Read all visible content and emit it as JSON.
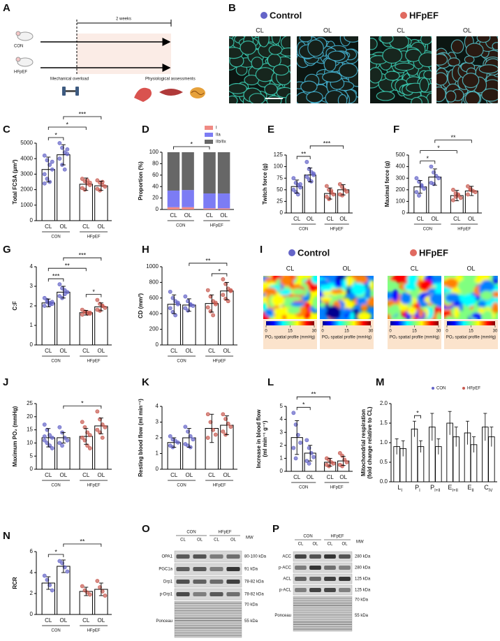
{
  "panel_a": {
    "label": "A",
    "groups": [
      "CON",
      "HFpEF"
    ],
    "duration": "2 weeks",
    "step1": "Mechanical overload",
    "step2": "Physiological assessments"
  },
  "panel_b": {
    "label": "B",
    "groups": [
      "Control",
      "HFpEF"
    ],
    "conditions": [
      "CL",
      "OL"
    ],
    "group_colors": [
      "#6464c8",
      "#e06a60"
    ]
  },
  "panel_i": {
    "label": "I",
    "groups": [
      "Control",
      "HFpEF"
    ],
    "conditions": [
      "CL",
      "OL"
    ],
    "group_colors": [
      "#6464c8",
      "#e06a60"
    ],
    "colorbar_ticks": [
      0,
      15,
      30
    ],
    "colorbar_label": "PO₂ spatial profile (mmHg)"
  },
  "panel_o": {
    "label": "O",
    "groups": [
      "CON",
      "HFpEF"
    ],
    "lanes": [
      "CL",
      "OL",
      "CL",
      "OL"
    ],
    "mw_header": "MW",
    "rows": [
      {
        "name": "OPA1",
        "mw": "80-100 kDa"
      },
      {
        "name": "PGC1a",
        "mw": "91 kDa"
      },
      {
        "name": "Drp1",
        "mw": "78-82 kDa"
      },
      {
        "name": "p-Drp1",
        "mw": "78-82 kDa"
      }
    ],
    "ponceau": "Ponceau",
    "ponceau_mw": [
      "70 kDa",
      "55 kDa"
    ]
  },
  "panel_p": {
    "label": "P",
    "groups": [
      "CON",
      "HFpEF"
    ],
    "lanes": [
      "CL",
      "OL",
      "CL",
      "OL"
    ],
    "mw_header": "MW",
    "rows": [
      {
        "name": "ACC",
        "mw": "280 kDa"
      },
      {
        "name": "p-ACC",
        "mw": "280 kDa"
      },
      {
        "name": "ACL",
        "mw": "125 kDa"
      },
      {
        "name": "p-ACL",
        "mw": "125 kDa"
      }
    ],
    "ponceau": "Ponceau",
    "ponceau_mw": [
      "70 kDa",
      "55 kDa"
    ]
  },
  "chart_data": [
    {
      "type": "bar",
      "label": "C",
      "ylabel": "Total FCSA (µm²)",
      "categories": [
        "CL",
        "OL",
        "CL",
        "OL"
      ],
      "groups": [
        "CON",
        "HFpEF"
      ],
      "group_colors": [
        "#6464c8",
        "#c85a50"
      ],
      "values": [
        3300,
        4250,
        2350,
        2250
      ],
      "errors": [
        800,
        650,
        400,
        300
      ],
      "points": [
        [
          4200,
          3900,
          3600,
          3300,
          3000,
          2700,
          2500,
          3800,
          2400
        ],
        [
          5000,
          4700,
          4400,
          4300,
          4000,
          3600,
          3300,
          4600
        ],
        [
          2700,
          2550,
          2400,
          2300,
          2100,
          2000,
          2600,
          2450
        ],
        [
          2600,
          2450,
          2300,
          2200,
          2050,
          1950,
          2500
        ]
      ],
      "ylim": [
        0,
        5000
      ],
      "yticks": [
        0,
        1000,
        2000,
        3000,
        4000,
        5000
      ],
      "significance": [
        {
          "from": 0,
          "to": 1,
          "label": "*"
        },
        {
          "from": 0,
          "to": 2,
          "label": "*"
        },
        {
          "from": 1,
          "to": 3,
          "label": "***"
        }
      ]
    },
    {
      "type": "stacked_bar",
      "label": "D",
      "ylabel": "Proportion (%)",
      "categories": [
        "CL",
        "OL",
        "CL",
        "OL"
      ],
      "groups": [
        "CON",
        "HFpEF"
      ],
      "series": [
        {
          "name": "I",
          "color": "#f08a84",
          "values": [
            4,
            4,
            2,
            2
          ]
        },
        {
          "name": "IIa",
          "color": "#7c7cf4",
          "values": [
            29,
            30,
            26,
            26
          ]
        },
        {
          "name": "IIb/IIx",
          "color": "#676767",
          "values": [
            67,
            66,
            72,
            72
          ]
        }
      ],
      "ylim": [
        0,
        100
      ],
      "yticks": [
        0,
        20,
        40,
        60,
        80,
        100
      ],
      "significance": [
        {
          "from": 0,
          "to": 2,
          "label": "*"
        }
      ]
    },
    {
      "type": "bar",
      "label": "E",
      "ylabel": "Twitch force (g)",
      "categories": [
        "CL",
        "OL",
        "CL",
        "OL"
      ],
      "groups": [
        "CON",
        "HFpEF"
      ],
      "group_colors": [
        "#6464c8",
        "#c85a50"
      ],
      "values": [
        57,
        82,
        42,
        50
      ],
      "errors": [
        14,
        15,
        12,
        11
      ],
      "points": [
        [
          75,
          65,
          60,
          55,
          50,
          45,
          40,
          62
        ],
        [
          110,
          95,
          88,
          82,
          78,
          72,
          68,
          85
        ],
        [
          58,
          50,
          44,
          40,
          35,
          30,
          48
        ],
        [
          62,
          56,
          50,
          46,
          40,
          38
        ]
      ],
      "ylim": [
        0,
        125
      ],
      "yticks": [
        0,
        25,
        50,
        75,
        100,
        125
      ],
      "significance": [
        {
          "from": 0,
          "to": 1,
          "label": "**"
        },
        {
          "from": 1,
          "to": 3,
          "label": "***"
        }
      ]
    },
    {
      "type": "bar",
      "label": "F",
      "ylabel": "Maximal force (g)",
      "categories": [
        "CL",
        "OL",
        "CL",
        "OL"
      ],
      "groups": [
        "CON",
        "HFpEF"
      ],
      "group_colors": [
        "#6464c8",
        "#c85a50"
      ],
      "values": [
        225,
        310,
        150,
        190
      ],
      "errors": [
        55,
        70,
        45,
        40
      ],
      "points": [
        [
          300,
          270,
          240,
          210,
          180,
          150,
          230
        ],
        [
          400,
          350,
          320,
          300,
          260,
          250
        ],
        [
          200,
          170,
          150,
          130,
          110,
          140,
          160
        ],
        [
          230,
          210,
          190,
          180,
          160,
          200
        ]
      ],
      "ylim": [
        0,
        500
      ],
      "yticks": [
        0,
        100,
        200,
        300,
        400,
        500
      ],
      "significance": [
        {
          "from": 0,
          "to": 1,
          "label": "*"
        },
        {
          "from": 0,
          "to": 2,
          "label": "*"
        },
        {
          "from": 1,
          "to": 3,
          "label": "**"
        }
      ]
    },
    {
      "type": "bar",
      "label": "G",
      "ylabel": "C:F",
      "categories": [
        "CL",
        "OL",
        "CL",
        "OL"
      ],
      "groups": [
        "CON",
        "HFpEF"
      ],
      "group_colors": [
        "#6464c8",
        "#c85a50"
      ],
      "values": [
        2.15,
        2.7,
        1.65,
        1.95
      ],
      "errors": [
        0.2,
        0.3,
        0.12,
        0.2
      ],
      "points": [
        [
          2.4,
          2.2,
          2.15,
          2.1,
          2.0,
          2.3,
          2.05,
          2.2
        ],
        [
          3.1,
          2.9,
          2.8,
          2.7,
          2.5,
          2.4,
          2.6
        ],
        [
          1.8,
          1.7,
          1.65,
          1.6,
          1.55,
          1.7,
          1.6,
          1.65
        ],
        [
          2.3,
          2.1,
          2.0,
          1.9,
          1.8,
          1.75,
          2.0
        ]
      ],
      "ylim": [
        0,
        4
      ],
      "yticks": [
        0,
        1,
        2,
        3,
        4
      ],
      "significance": [
        {
          "from": 0,
          "to": 1,
          "label": "***"
        },
        {
          "from": 2,
          "to": 3,
          "label": "*"
        },
        {
          "from": 0,
          "to": 2,
          "label": "**"
        },
        {
          "from": 1,
          "to": 3,
          "label": "***"
        }
      ]
    },
    {
      "type": "bar",
      "label": "H",
      "ylabel": "CD (mm²)",
      "categories": [
        "CL",
        "OL",
        "CL",
        "OL"
      ],
      "groups": [
        "CON",
        "HFpEF"
      ],
      "group_colors": [
        "#6464c8",
        "#c85a50"
      ],
      "values": [
        520,
        510,
        530,
        690
      ],
      "errors": [
        120,
        80,
        110,
        110
      ],
      "points": [
        [
          680,
          600,
          560,
          520,
          470,
          420,
          380,
          540
        ],
        [
          620,
          560,
          520,
          500,
          470,
          440,
          510
        ],
        [
          700,
          620,
          560,
          520,
          480,
          430,
          380,
          540
        ],
        [
          840,
          780,
          720,
          690,
          640,
          590,
          560,
          700
        ]
      ],
      "ylim": [
        0,
        1000
      ],
      "yticks": [
        0,
        200,
        400,
        600,
        800,
        1000
      ],
      "significance": [
        {
          "from": 2,
          "to": 3,
          "label": "*"
        },
        {
          "from": 1,
          "to": 3,
          "label": "**"
        }
      ]
    },
    {
      "type": "bar",
      "label": "J",
      "ylabel": "Maximum PO₂ (mmHg)",
      "categories": [
        "CL",
        "OL",
        "CL",
        "OL"
      ],
      "groups": [
        "CON",
        "HFpEF"
      ],
      "group_colors": [
        "#6464c8",
        "#c85a50"
      ],
      "values": [
        12,
        12,
        12.5,
        16.5
      ],
      "errors": [
        3.5,
        2,
        3,
        3
      ],
      "points": [
        [
          17,
          15,
          13,
          12,
          11,
          10,
          9,
          8,
          12.5
        ],
        [
          16,
          14,
          12,
          11,
          10,
          9
        ],
        [
          18,
          16,
          14,
          13,
          12,
          11,
          9,
          8
        ],
        [
          22,
          19,
          17,
          16,
          15,
          14,
          12
        ]
      ],
      "ylim": [
        0,
        25
      ],
      "yticks": [
        0,
        5,
        10,
        15,
        20,
        25
      ],
      "significance": [
        {
          "from": 1,
          "to": 3,
          "label": "*"
        }
      ]
    },
    {
      "type": "bar",
      "label": "K",
      "ylabel": "Resting blood flow (ml min⁻¹)",
      "categories": [
        "CL",
        "OL",
        "CL",
        "OL"
      ],
      "groups": [
        "CON",
        "HFpEF"
      ],
      "group_colors": [
        "#6464c8",
        "#c85a50"
      ],
      "values": [
        1.7,
        2.0,
        2.6,
        2.8
      ],
      "errors": [
        0.3,
        0.6,
        0.9,
        0.6
      ],
      "points": [
        [
          2.1,
          1.9,
          1.8,
          1.7,
          1.5,
          1.4
        ],
        [
          2.7,
          2.4,
          2.1,
          1.9,
          1.6,
          1.5,
          1.4
        ],
        [
          3.5,
          3.0,
          2.5,
          2.2,
          2.0
        ],
        [
          3.5,
          3.2,
          2.9,
          2.7,
          2.4,
          2.2
        ]
      ],
      "ylim": [
        0,
        4
      ],
      "yticks": [
        0,
        1,
        2,
        3,
        4
      ],
      "significance": []
    },
    {
      "type": "bar",
      "label": "L",
      "ylabel": [
        "Increase in blood flow",
        "(ml min⁻¹ g⁻¹)"
      ],
      "categories": [
        "CL",
        "OL",
        "CL",
        "OL"
      ],
      "groups": [
        "CON",
        "HFpEF"
      ],
      "group_colors": [
        "#6464c8",
        "#c85a50"
      ],
      "values": [
        2.6,
        1.4,
        0.7,
        0.8
      ],
      "errors": [
        1.3,
        0.6,
        0.3,
        0.35
      ],
      "points": [
        [
          4.5,
          3.6,
          2.8,
          2.2,
          1.8,
          1.0
        ],
        [
          2.4,
          1.8,
          1.4,
          1.1,
          0.8,
          0.6
        ],
        [
          1.0,
          0.9,
          0.7,
          0.6,
          0.5,
          0.4
        ],
        [
          1.4,
          1.2,
          0.9,
          0.7,
          0.5,
          0.4
        ]
      ],
      "ylim": [
        0,
        5
      ],
      "yticks": [
        0,
        1,
        2,
        3,
        4,
        5
      ],
      "significance": [
        {
          "from": 0,
          "to": 1,
          "label": "*"
        },
        {
          "from": 0,
          "to": 2,
          "label": "**"
        }
      ]
    },
    {
      "type": "grouped_bar",
      "label": "M",
      "ylabel": [
        "Mitochondrial respiration",
        "(fold change relative to CL)"
      ],
      "categories": [
        {
          "main": "L",
          "sub": "I"
        },
        {
          "main": "P",
          "sub": "I"
        },
        {
          "main": "P",
          "sub": "I+II"
        },
        {
          "main": "E",
          "sub": "I+II"
        },
        {
          "main": "E",
          "sub": "II"
        },
        {
          "main": "C",
          "sub": "IV"
        }
      ],
      "series": [
        {
          "name": "CON",
          "color": "#6464c8",
          "values": [
            0.9,
            1.35,
            1.4,
            1.5,
            1.25,
            1.4
          ],
          "errors": [
            0.2,
            0.2,
            0.35,
            0.3,
            0.3,
            0.35
          ]
        },
        {
          "name": "HFpEF",
          "color": "#c85a50",
          "values": [
            0.85,
            0.9,
            0.9,
            1.15,
            0.95,
            1.15
          ],
          "errors": [
            0.2,
            0.15,
            0.2,
            0.25,
            0.2,
            0.25
          ]
        }
      ],
      "ylim": [
        0,
        2
      ],
      "yticks": [
        {
          "value": 0,
          "label": "0.0"
        },
        0.5,
        {
          "value": 1,
          "label": "1.0"
        },
        1.5,
        {
          "value": 2,
          "label": "2.0"
        }
      ],
      "significance": [
        {
          "category": 1,
          "label": "*"
        }
      ]
    },
    {
      "type": "bar",
      "label": "N",
      "ylabel": "RCR",
      "categories": [
        "CL",
        "OL",
        "CL",
        "OL"
      ],
      "groups": [
        "CON",
        "HFpEF"
      ],
      "group_colors": [
        "#6464c8",
        "#c85a50"
      ],
      "values": [
        3.0,
        4.6,
        2.2,
        2.4
      ],
      "errors": [
        0.6,
        0.6,
        0.4,
        0.6
      ],
      "points": [
        [
          3.7,
          3.3,
          2.8,
          2.3
        ],
        [
          5.1,
          4.9,
          4.5,
          4.1
        ],
        [
          2.7,
          2.3,
          2.1,
          1.9
        ],
        [
          3.2,
          2.6,
          2.2,
          1.8
        ]
      ],
      "ylim": [
        0,
        6
      ],
      "yticks": [
        0,
        2,
        4,
        6
      ],
      "significance": [
        {
          "from": 0,
          "to": 1,
          "label": "*"
        },
        {
          "from": 1,
          "to": 3,
          "label": "**"
        }
      ]
    }
  ]
}
